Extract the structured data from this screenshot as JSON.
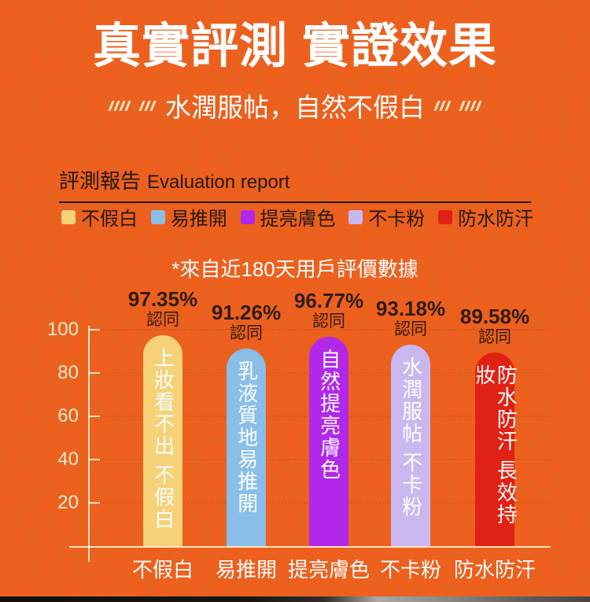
{
  "page": {
    "title": "真實評測 實證效果",
    "subtitle": "水潤服帖，自然不假白"
  },
  "report": {
    "heading_zh": "評測報告",
    "heading_en": "Evaluation report",
    "legend": [
      {
        "label": "不假白",
        "color": "#f5d178"
      },
      {
        "label": "易推開",
        "color": "#89bee8"
      },
      {
        "label": "提亮膚色",
        "color": "#b228ea"
      },
      {
        "label": "不卡粉",
        "color": "#c9b7f0"
      },
      {
        "label": "防水防汗",
        "color": "#e02113"
      }
    ],
    "note": "*來自近180天用戶評價數據"
  },
  "chart_data": {
    "type": "bar",
    "title": "評測報告 Evaluation report",
    "source_note": "*來自近180天用戶評價數據",
    "categories": [
      "不假白",
      "易推開",
      "提亮膚色",
      "不卡粉",
      "防水防汗"
    ],
    "values": [
      97.35,
      91.26,
      96.77,
      93.18,
      89.58
    ],
    "values_display": [
      "97.35%",
      "91.26%",
      "96.77%",
      "93.18%",
      "89.58%"
    ],
    "agree_label": "認同",
    "bar_texts": [
      "上妝看不出 不假白",
      "乳液質地易推開",
      "自然提亮膚色",
      "水潤服帖 不卡粉",
      "防水防汗 長效持妝"
    ],
    "bar_colors": [
      "#f5d178",
      "#89bee8",
      "#b228ea",
      "#c9b7f0",
      "#e02113"
    ],
    "y_ticks": [
      20,
      40,
      60,
      80,
      100
    ],
    "ylim": [
      0,
      100
    ],
    "xlabel": "",
    "ylabel": "",
    "grid": "faint-dashed-horizontal",
    "legend_position": "top",
    "background_color": "#ef5f1e",
    "axis_color": "#f8ecce",
    "value_label_color": "#2f1c10"
  }
}
